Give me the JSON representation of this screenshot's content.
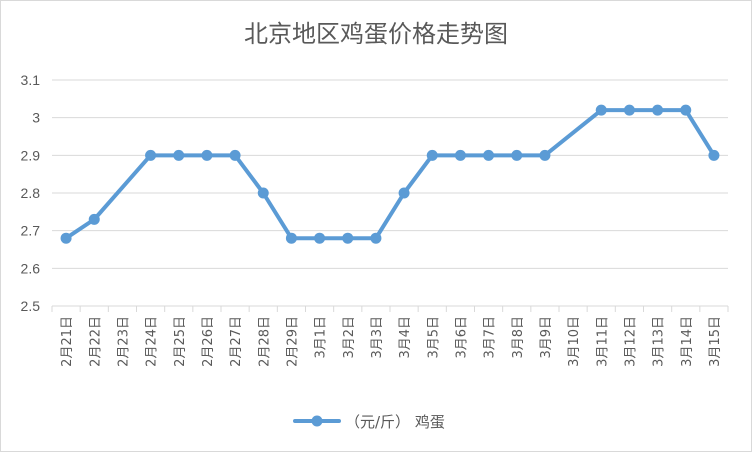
{
  "chart_data": {
    "type": "line",
    "title": "北京地区鸡蛋价格走势图",
    "categories": [
      "2月21日",
      "2月22日",
      "2月23日",
      "2月24日",
      "2月25日",
      "2月26日",
      "2月27日",
      "2月28日",
      "2月29日",
      "3月1日",
      "3月2日",
      "3月3日",
      "3月4日",
      "3月5日",
      "3月6日",
      "3月7日",
      "3月8日",
      "3月9日",
      "3月10日",
      "3月11日",
      "3月12日",
      "3月13日",
      "3月14日",
      "3月15日"
    ],
    "series": [
      {
        "name": "（元/斤） 鸡蛋",
        "values": [
          2.68,
          2.73,
          null,
          2.9,
          2.9,
          2.9,
          2.9,
          2.8,
          2.68,
          2.68,
          2.68,
          2.68,
          2.8,
          2.9,
          2.9,
          2.9,
          2.9,
          2.9,
          null,
          3.02,
          3.02,
          3.02,
          3.02,
          2.9
        ],
        "color": "#5b9bd5"
      }
    ],
    "ylim": [
      2.5,
      3.1
    ],
    "yticks": [
      "2.5",
      "2.6",
      "2.7",
      "2.8",
      "2.9",
      "3",
      "3.1"
    ],
    "grid": true,
    "legend": "bottom"
  }
}
